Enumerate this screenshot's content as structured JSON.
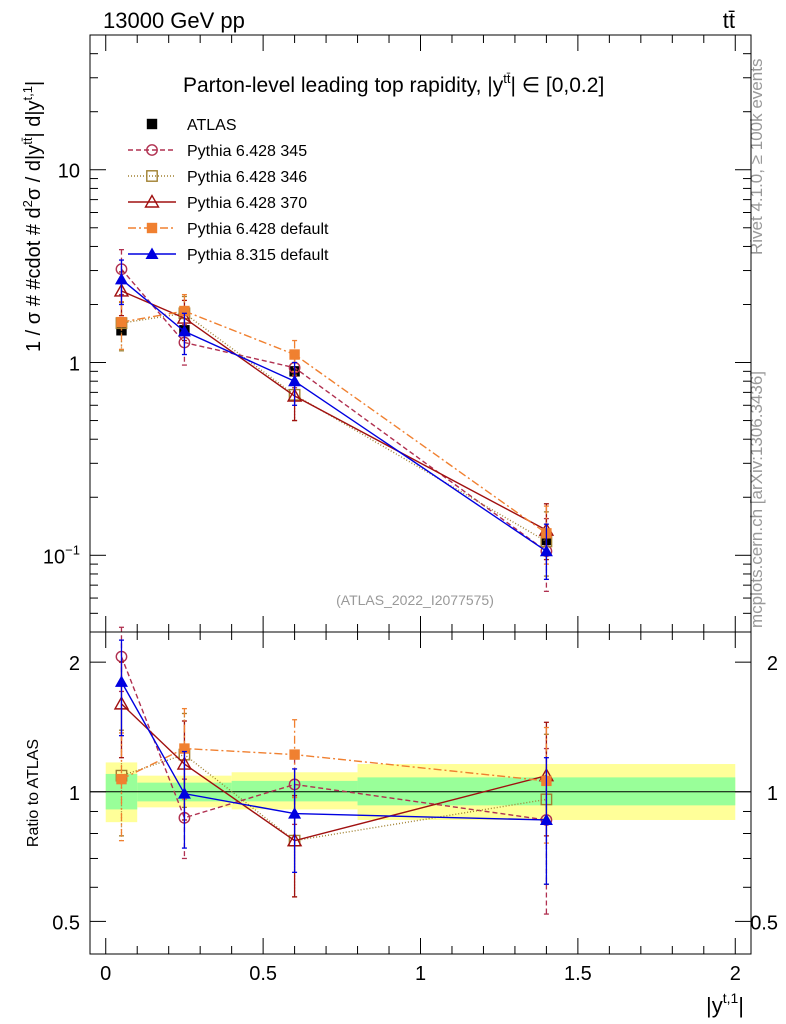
{
  "header": {
    "left": "13000 GeV pp",
    "right": "tt̄"
  },
  "side": {
    "rivet": "Rivet 4.1.0, ≥ 100k events",
    "mcplots": "mcplots.cern.ch [arXiv:1306.3436]"
  },
  "chart_data": [
    {
      "type": "line",
      "panel": "main",
      "title": "Parton-level leading top rapidity, |y^{tt̄}| ∈ [0,0.2]",
      "title_main": "Parton-level leading top rapidity, |y",
      "title_sup": "tt̄",
      "title_tail": "| ∈ [0,0.2]",
      "ylabel": "1 / σ # #cdot # d²σ / d|y^{tt̄}| d|y^{t,1}|",
      "ylabel_text": "1 / σ # #cdot # d",
      "ylabel_sup2": "2",
      "ylabel_mid": "σ / d|y",
      "ylabel_suptt": "tt̄",
      "ylabel_mid2": "| d|y",
      "ylabel_supt1": "t,1",
      "ylabel_end": "|",
      "yscale": "log",
      "ylim": [
        0.04,
        50
      ],
      "xlim": [
        -0.05,
        2.05
      ],
      "yticks": [
        {
          "value": 0.1,
          "label": "10",
          "sup": "−1"
        },
        {
          "value": 1,
          "label": "1",
          "sup": ""
        },
        {
          "value": 10,
          "label": "10",
          "sup": ""
        }
      ],
      "watermark": "(ATLAS_2022_I2077575)",
      "x": [
        0.05,
        0.25,
        0.6,
        1.4
      ],
      "series": [
        {
          "name": "ATLAS",
          "color": "#000000",
          "dash": "none",
          "marker": "square-filled",
          "values": [
            1.47,
            1.47,
            0.9,
            0.12
          ],
          "err_up": [
            0,
            0,
            0,
            0
          ],
          "err_dn": [
            0,
            0,
            0,
            0
          ]
        },
        {
          "name": "Pythia 6.428 345",
          "color": "#b03050",
          "dash": "5,3",
          "marker": "circle-open",
          "values": [
            3.05,
            1.27,
            0.94,
            0.105
          ],
          "err_up": [
            0.8,
            0.3,
            0.2,
            0.05
          ],
          "err_dn": [
            0.8,
            0.3,
            0.2,
            0.04
          ]
        },
        {
          "name": "Pythia 6.428 346",
          "color": "#a08030",
          "dash": "1,2",
          "marker": "square-open",
          "values": [
            1.6,
            1.8,
            0.68,
            0.118
          ],
          "err_up": [
            0.45,
            0.4,
            0.18,
            0.05
          ],
          "err_dn": [
            0.45,
            0.4,
            0.18,
            0.04
          ]
        },
        {
          "name": "Pythia 6.428 370",
          "color": "#a01010",
          "dash": "none",
          "marker": "triangle-open",
          "values": [
            2.35,
            1.7,
            0.67,
            0.135
          ],
          "err_up": [
            0.6,
            0.4,
            0.18,
            0.05
          ],
          "err_dn": [
            0.6,
            0.4,
            0.17,
            0.04
          ]
        },
        {
          "name": "Pythia 6.428 default",
          "color": "#f08030",
          "dash": "8,3,2,3",
          "marker": "square-filled",
          "values": [
            1.62,
            1.85,
            1.1,
            0.13
          ],
          "err_up": [
            0.45,
            0.4,
            0.2,
            0.05
          ],
          "err_dn": [
            0.45,
            0.4,
            0.2,
            0.04
          ]
        },
        {
          "name": "Pythia 8.315 default",
          "color": "#0000e0",
          "dash": "none",
          "marker": "triangle-filled",
          "values": [
            2.7,
            1.45,
            0.8,
            0.105
          ],
          "err_up": [
            0.7,
            0.35,
            0.2,
            0.04
          ],
          "err_dn": [
            0.7,
            0.35,
            0.2,
            0.03
          ]
        }
      ]
    },
    {
      "type": "line",
      "panel": "ratio",
      "ylabel": "Ratio to ATLAS",
      "xlabel": "|y^{t,1}|",
      "xlabel_main": "|y",
      "xlabel_sup": "t,1",
      "xlabel_end": "|",
      "yscale": "log",
      "ylim": [
        0.42,
        2.35
      ],
      "xlim": [
        -0.05,
        2.05
      ],
      "xticks": [
        {
          "value": 0,
          "label": "0"
        },
        {
          "value": 0.5,
          "label": "0.5"
        },
        {
          "value": 1,
          "label": "1"
        },
        {
          "value": 1.5,
          "label": "1.5"
        },
        {
          "value": 2,
          "label": "2"
        }
      ],
      "yticks": [
        {
          "value": 0.5,
          "label": "0.5"
        },
        {
          "value": 1,
          "label": "1"
        },
        {
          "value": 2,
          "label": "2"
        }
      ],
      "bands": [
        {
          "x0": 0.0,
          "x1": 0.1,
          "yellow": [
            0.85,
            1.17
          ],
          "green": [
            0.91,
            1.1
          ]
        },
        {
          "x0": 0.1,
          "x1": 0.4,
          "yellow": [
            0.92,
            1.09
          ],
          "green": [
            0.95,
            1.05
          ]
        },
        {
          "x0": 0.4,
          "x1": 0.8,
          "yellow": [
            0.91,
            1.11
          ],
          "green": [
            0.95,
            1.06
          ]
        },
        {
          "x0": 0.8,
          "x1": 2.0,
          "yellow": [
            0.86,
            1.16
          ],
          "green": [
            0.93,
            1.08
          ]
        }
      ],
      "x": [
        0.05,
        0.25,
        0.6,
        1.4
      ],
      "series": [
        {
          "name": "Pythia 6.428 345",
          "color": "#b03050",
          "dash": "5,3",
          "marker": "circle-open",
          "values": [
            2.06,
            0.87,
            1.04,
            0.86
          ],
          "err_up": [
            0.35,
            0.2,
            0.2,
            0.4
          ],
          "err_dn": [
            0.35,
            0.17,
            0.2,
            0.34
          ]
        },
        {
          "name": "Pythia 6.428 346",
          "color": "#a08030",
          "dash": "1,2",
          "marker": "square-open",
          "values": [
            1.09,
            1.22,
            0.77,
            0.96
          ],
          "err_up": [
            0.3,
            0.3,
            0.2,
            0.4
          ],
          "err_dn": [
            0.3,
            0.3,
            0.2,
            0.35
          ]
        },
        {
          "name": "Pythia 6.428 370",
          "color": "#a01010",
          "dash": "none",
          "marker": "triangle-open",
          "values": [
            1.6,
            1.16,
            0.77,
            1.09
          ],
          "err_up": [
            0.4,
            0.3,
            0.21,
            0.36
          ],
          "err_dn": [
            0.4,
            0.3,
            0.2,
            0.3
          ]
        },
        {
          "name": "Pythia 6.428 default",
          "color": "#f08030",
          "dash": "8,3,2,3",
          "marker": "square-filled",
          "values": [
            1.07,
            1.26,
            1.22,
            1.06
          ],
          "err_up": [
            0.3,
            0.3,
            0.25,
            0.35
          ],
          "err_dn": [
            0.3,
            0.3,
            0.25,
            0.3
          ]
        },
        {
          "name": "Pythia 8.315 default",
          "color": "#0000e0",
          "dash": "none",
          "marker": "triangle-filled",
          "values": [
            1.8,
            0.99,
            0.89,
            0.86
          ],
          "err_up": [
            0.45,
            0.25,
            0.24,
            0.34
          ],
          "err_dn": [
            0.45,
            0.25,
            0.24,
            0.25
          ]
        }
      ]
    }
  ]
}
